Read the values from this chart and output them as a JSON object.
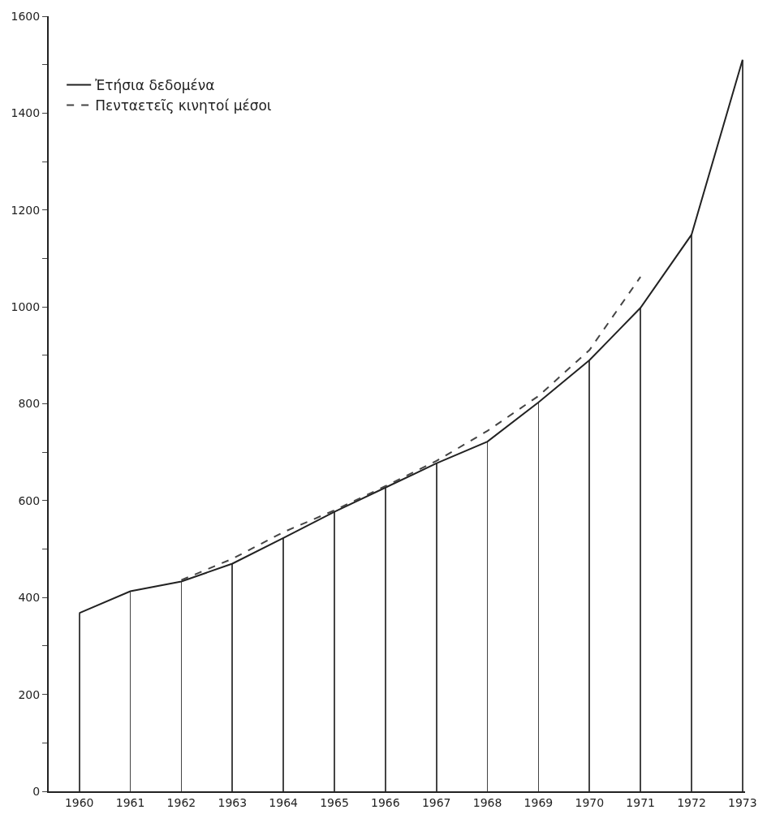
{
  "chart_data": {
    "type": "line",
    "categories": [
      "1960",
      "1961",
      "1962",
      "1963",
      "1964",
      "1965",
      "1966",
      "1967",
      "1968",
      "1969",
      "1970",
      "1971",
      "1972",
      "1973"
    ],
    "series": [
      {
        "type": "bar",
        "color": "#444444",
        "values": [
          368,
          413,
          433,
          470,
          523,
          577,
          627,
          677,
          722,
          803,
          890,
          998,
          1149,
          1510
        ]
      },
      {
        "name": "Ἐτήσια δεδομένα",
        "color": "#222222",
        "line_style": "solid",
        "values": [
          368,
          413,
          433,
          470,
          523,
          577,
          627,
          677,
          722,
          803,
          890,
          998,
          1149,
          1510
        ]
      },
      {
        "name": "Πενταετεῖς κινητοί μέσοι",
        "color": "#444444",
        "line_style": "dashed",
        "values": [
          null,
          null,
          436,
          480,
          535,
          580,
          630,
          682,
          744,
          816,
          911,
          1062,
          null,
          null
        ]
      }
    ],
    "ylim": [
      0,
      1600
    ],
    "yticks": [
      0,
      {
        "value": 100,
        "label": null
      },
      200,
      {
        "value": 300,
        "label": null
      },
      400,
      {
        "value": 500,
        "label": null
      },
      600,
      {
        "value": 700,
        "label": null
      },
      800,
      {
        "value": 900,
        "label": null
      },
      1000,
      {
        "value": 1100,
        "label": null
      },
      1200,
      {
        "value": 1300,
        "label": null
      },
      1400,
      {
        "value": 1500,
        "label": null
      },
      1600
    ],
    "grid": false,
    "legend": "top left",
    "marker": "none"
  }
}
